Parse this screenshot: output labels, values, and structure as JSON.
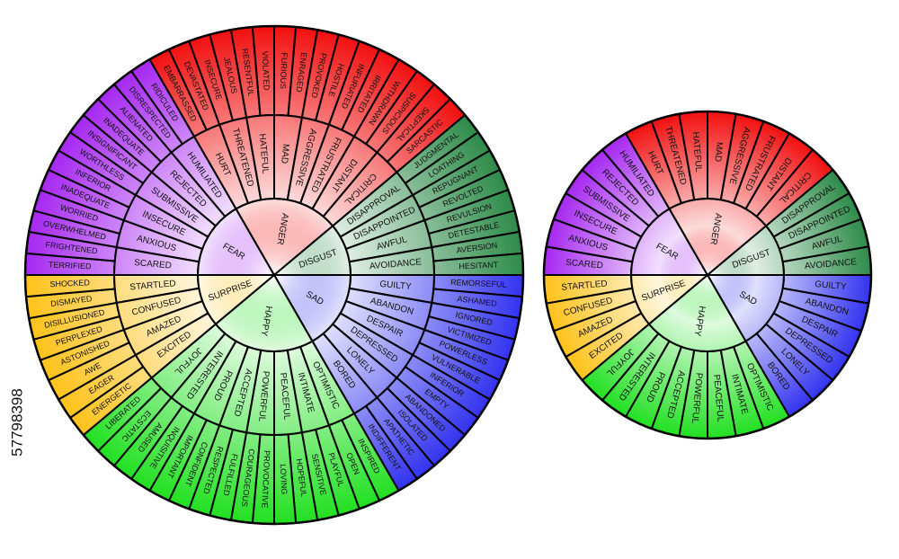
{
  "watermark": "57798398",
  "emotions": [
    {
      "label": "FEAR",
      "color": "#a628f2",
      "words": [
        {
          "label": "SCARED",
          "outer": [
            "TERRIFIED",
            "FRIGHTENED"
          ]
        },
        {
          "label": "ANXIOUS",
          "outer": [
            "OVERWHELMED",
            "WORRIED"
          ]
        },
        {
          "label": "INSECURE",
          "outer": [
            "INADEQUATE",
            "INFERIOR"
          ]
        },
        {
          "label": "SUBMISSIVE",
          "outer": [
            "WORTHLESS",
            "INSIGNIFICANT"
          ]
        },
        {
          "label": "REJECTED",
          "outer": [
            "INADEQUATE",
            "ALIENATED"
          ]
        },
        {
          "label": "HUMILIATED",
          "outer": [
            "DISRESPECTED",
            "RIDICULED"
          ]
        }
      ]
    },
    {
      "label": "ANGER",
      "color": "#f21010",
      "words": [
        {
          "label": "HURT",
          "outer": [
            "EMBARRASSED",
            "DEVASTATED"
          ]
        },
        {
          "label": "THREATENED",
          "outer": [
            "INSECURE",
            "JEALOUS"
          ]
        },
        {
          "label": "HATEFUL",
          "outer": [
            "RESENTFUL",
            "VIOLATED"
          ]
        },
        {
          "label": "MAD",
          "outer": [
            "FURIOUS",
            "ENRAGED"
          ]
        },
        {
          "label": "AGGRESSIVE",
          "outer": [
            "PROVOKED",
            "HOSTILE"
          ]
        },
        {
          "label": "FRUSTRATED",
          "outer": [
            "INFURIATED",
            "IRRITATED"
          ]
        },
        {
          "label": "DISTANT",
          "outer": [
            "WITHDRAWN",
            "SUSPICIOUS"
          ]
        },
        {
          "label": "CRITICAL",
          "outer": [
            "SKEPTICAL",
            "SARCASTIC"
          ]
        }
      ]
    },
    {
      "label": "DISGUST",
      "color": "#2e8b4a",
      "words": [
        {
          "label": "DISAPPROVAL",
          "outer": [
            "JUDGMENTAL",
            "LOATHING"
          ]
        },
        {
          "label": "DISAPPOINTED",
          "outer": [
            "REPUGNANT",
            "REVOLTED"
          ]
        },
        {
          "label": "AWFUL",
          "outer": [
            "REVULSION",
            "DETESTABLE"
          ]
        },
        {
          "label": "AVOIDANCE",
          "outer": [
            "AVERSION",
            "HESITANT"
          ]
        }
      ]
    },
    {
      "label": "SAD",
      "color": "#3333f0",
      "words": [
        {
          "label": "GUILTY",
          "outer": [
            "REMORSEFUL",
            "ASHAMED"
          ]
        },
        {
          "label": "ABANDON",
          "outer": [
            "IGNORED",
            "VICTIMIZED"
          ]
        },
        {
          "label": "DESPAIR",
          "outer": [
            "POWERLESS",
            "VULNERABLE"
          ]
        },
        {
          "label": "DEPRESSED",
          "outer": [
            "INFERIOR",
            "EMPTY"
          ]
        },
        {
          "label": "LONELY",
          "outer": [
            "ABANDONED",
            "ISOLATED"
          ]
        },
        {
          "label": "BORED",
          "outer": [
            "APATHETIC",
            "INDIFFERENT"
          ]
        }
      ]
    },
    {
      "label": "HAPPY",
      "color": "#22e022",
      "words": [
        {
          "label": "OPTIMISTIC",
          "outer": [
            "INSPIRED",
            "OPEN"
          ]
        },
        {
          "label": "INTIMATE",
          "outer": [
            "PLAYFUL",
            "SENSITIVE"
          ]
        },
        {
          "label": "PEACEFUL",
          "outer": [
            "HOPEFUL",
            "LOVING"
          ]
        },
        {
          "label": "POWERFUL",
          "outer": [
            "PROVOCATIVE",
            "COURAGEOUS"
          ]
        },
        {
          "label": "ACCEPTED",
          "outer": [
            "FULFILLED",
            "RESPECTED"
          ]
        },
        {
          "label": "PROUD",
          "outer": [
            "CONFIDENT",
            "IMPORTANT"
          ]
        },
        {
          "label": "INTERESTED",
          "outer": [
            "INQUISITIVE",
            "AMUSED"
          ]
        },
        {
          "label": "JOYFUL",
          "outer": [
            "ECSTATIC",
            "LIBERATED"
          ]
        }
      ]
    },
    {
      "label": "SURPRISE",
      "color": "#ffc21a",
      "words": [
        {
          "label": "EXCITED",
          "outer": [
            "ENERGETIC",
            "EAGER"
          ]
        },
        {
          "label": "AMAZED",
          "outer": [
            "AWE",
            "ASTONISHED"
          ]
        },
        {
          "label": "CONFUSED",
          "outer": [
            "PERPLEXED",
            "DISILLUSIONED"
          ]
        },
        {
          "label": "STARTLED",
          "outer": [
            "DISMAYED",
            "SHOCKED"
          ]
        }
      ]
    }
  ]
}
